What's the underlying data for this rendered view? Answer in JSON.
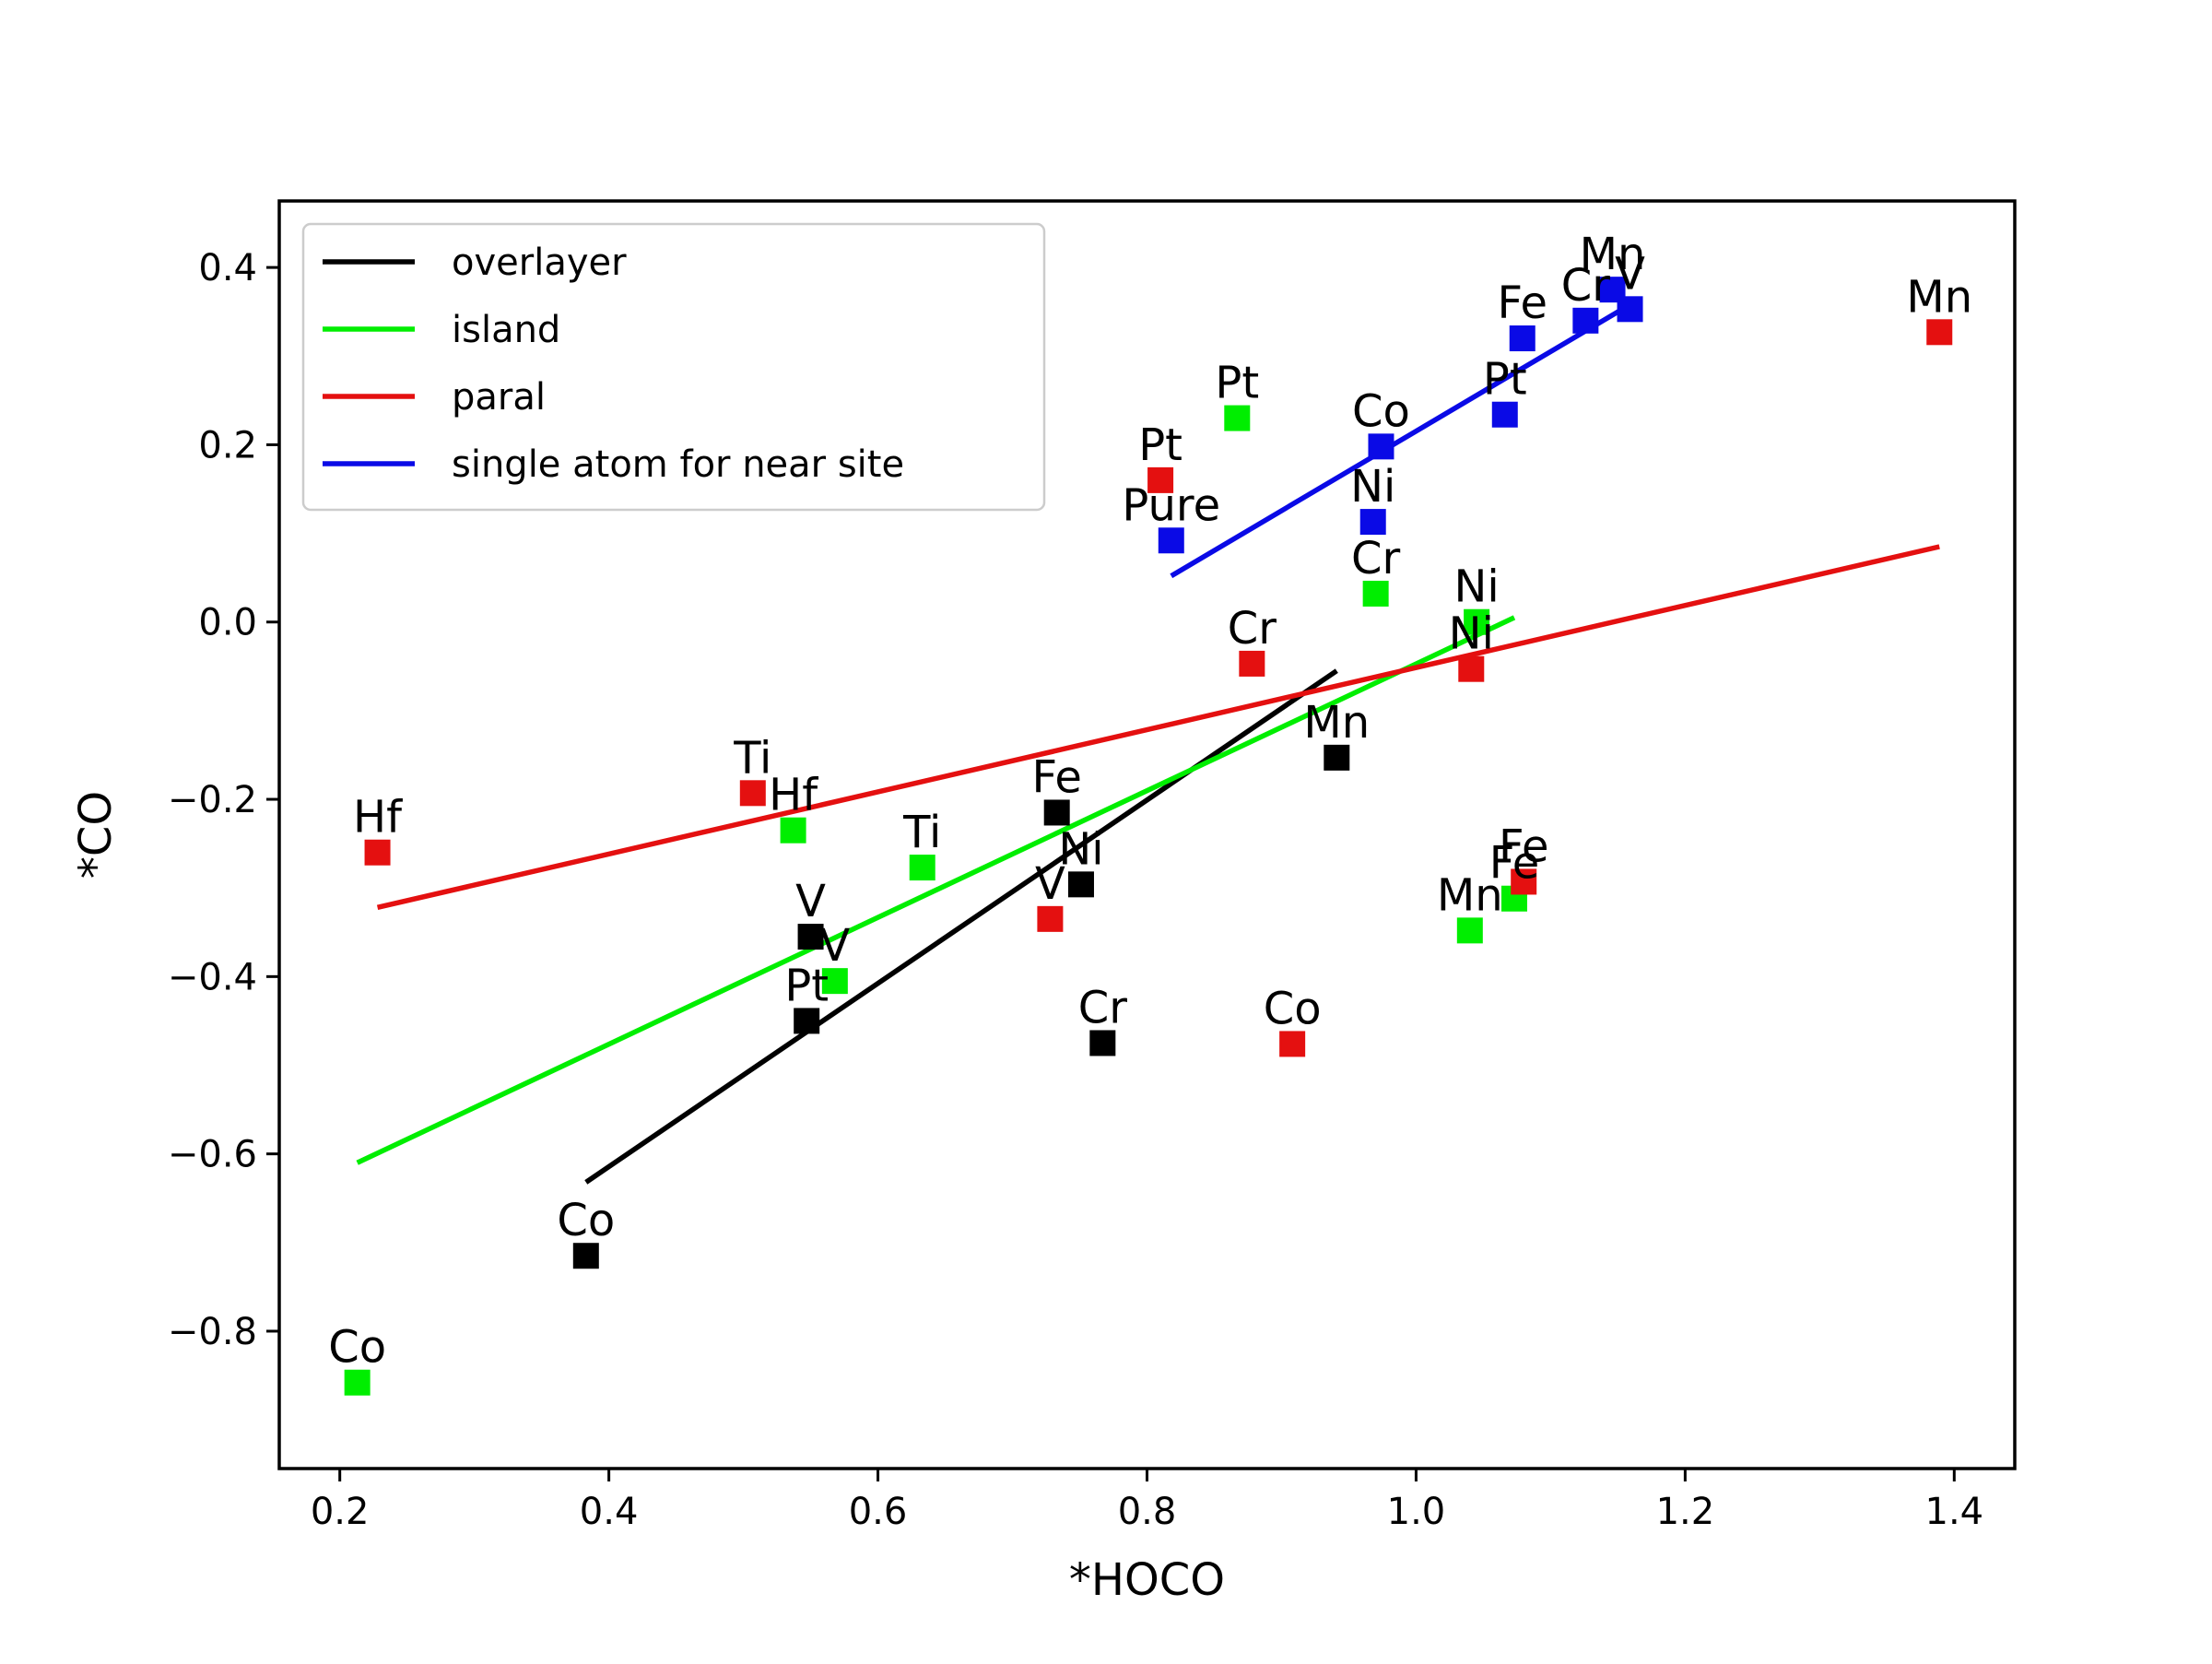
{
  "chart_data": {
    "type": "scatter",
    "title": "",
    "xlabel": "*HOCO",
    "ylabel": "*CO",
    "xlim": [
      0.155,
      1.445
    ],
    "ylim": [
      -0.955,
      0.475
    ],
    "xticks": [
      0.2,
      0.4,
      0.6,
      0.8,
      1.0,
      1.2,
      1.4
    ],
    "xtick_labels": [
      "0.2",
      "0.4",
      "0.6",
      "0.8",
      "1.0",
      "1.2",
      "1.4"
    ],
    "yticks": [
      0.4,
      0.2,
      0.0,
      -0.2,
      -0.4,
      -0.6,
      -0.8
    ],
    "ytick_labels": [
      "0.4",
      "0.2",
      "0.0",
      "−0.2",
      "−0.4",
      "−0.6",
      "−0.8"
    ],
    "grid": false,
    "legend_position": "upper-left",
    "series": [
      {
        "name": "overlayer",
        "color": "#000000",
        "points": [
          {
            "label": "Co",
            "x": 0.383,
            "y": -0.715
          },
          {
            "label": "V",
            "x": 0.55,
            "y": -0.355
          },
          {
            "label": "Pt",
            "x": 0.547,
            "y": -0.45
          },
          {
            "label": "Fe",
            "x": 0.733,
            "y": -0.215
          },
          {
            "label": "Ni",
            "x": 0.751,
            "y": -0.296
          },
          {
            "label": "Cr",
            "x": 0.767,
            "y": -0.475
          },
          {
            "label": "Mn",
            "x": 0.941,
            "y": -0.153
          }
        ],
        "fit": {
          "x": [
            0.383,
            0.941
          ],
          "y": [
            -0.632,
            -0.055
          ]
        }
      },
      {
        "name": "island",
        "color": "#00ee00",
        "points": [
          {
            "label": "Co",
            "x": 0.213,
            "y": -0.858
          },
          {
            "label": "Hf",
            "x": 0.537,
            "y": -0.235
          },
          {
            "label": "V",
            "x": 0.568,
            "y": -0.405
          },
          {
            "label": "Ti",
            "x": 0.633,
            "y": -0.277
          },
          {
            "label": "Pt",
            "x": 0.867,
            "y": 0.23
          },
          {
            "label": "Cr",
            "x": 0.97,
            "y": 0.032
          },
          {
            "label": "Ni",
            "x": 1.045,
            "y": 0.0
          },
          {
            "label": "Mn",
            "x": 1.04,
            "y": -0.348
          },
          {
            "label": "Fe",
            "x": 1.073,
            "y": -0.312
          }
        ],
        "fit": {
          "x": [
            0.213,
            1.073
          ],
          "y": [
            -0.61,
            0.005
          ]
        }
      },
      {
        "name": "paral",
        "color": "#e41010",
        "points": [
          {
            "label": "Hf",
            "x": 0.228,
            "y": -0.26
          },
          {
            "label": "Ti",
            "x": 0.507,
            "y": -0.193
          },
          {
            "label": "Pt",
            "x": 0.81,
            "y": 0.16
          },
          {
            "label": "Cr",
            "x": 0.878,
            "y": -0.047
          },
          {
            "label": "V",
            "x": 0.728,
            "y": -0.335
          },
          {
            "label": "Co",
            "x": 0.908,
            "y": -0.476
          },
          {
            "label": "Ni",
            "x": 1.041,
            "y": -0.053
          },
          {
            "label": "Fe",
            "x": 1.08,
            "y": -0.293
          },
          {
            "label": "Mn",
            "x": 1.389,
            "y": 0.327
          }
        ],
        "fit": {
          "x": [
            0.228,
            1.389
          ],
          "y": [
            -0.322,
            0.085
          ]
        }
      },
      {
        "name": "single atom for near site",
        "color": "#0a0ae6",
        "points": [
          {
            "label": "Pure",
            "x": 0.818,
            "y": 0.092
          },
          {
            "label": "Co",
            "x": 0.974,
            "y": 0.198
          },
          {
            "label": "Ni",
            "x": 0.968,
            "y": 0.113
          },
          {
            "label": "Pt",
            "x": 1.066,
            "y": 0.234
          },
          {
            "label": "Fe",
            "x": 1.079,
            "y": 0.32
          },
          {
            "label": "Cr",
            "x": 1.126,
            "y": 0.34
          },
          {
            "label": "Mn",
            "x": 1.146,
            "y": 0.375
          },
          {
            "label": "V",
            "x": 1.159,
            "y": 0.353
          }
        ],
        "fit": {
          "x": [
            0.818,
            1.159
          ],
          "y": [
            0.052,
            0.358
          ]
        }
      }
    ]
  }
}
